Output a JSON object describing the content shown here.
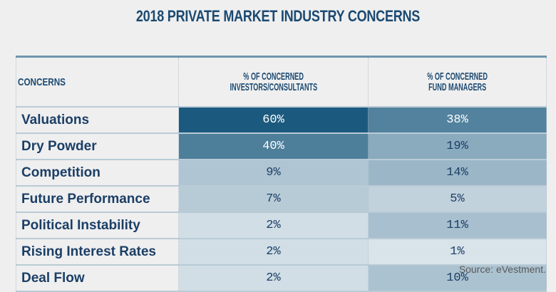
{
  "chart_data": {
    "type": "table",
    "title": "2018 PRIVATE MARKET INDUSTRY CONCERNS",
    "columns": [
      "CONCERNS",
      "% OF CONCERNED INVESTORS/CONSULTANTS",
      "% OF CONCERNED FUND MANAGERS"
    ],
    "header_lines": {
      "col2": [
        "% OF CONCERNED",
        "INVESTORS/CONSULTANTS"
      ],
      "col3": [
        "% OF CONCERNED",
        "FUND MANAGERS"
      ]
    },
    "rows": [
      {
        "concern": "Valuations",
        "investors": "60%",
        "managers": "38%",
        "investors_value": 60,
        "managers_value": 38
      },
      {
        "concern": "Dry Powder",
        "investors": "40%",
        "managers": "19%",
        "investors_value": 40,
        "managers_value": 19
      },
      {
        "concern": "Competition",
        "investors": "9%",
        "managers": "14%",
        "investors_value": 9,
        "managers_value": 14
      },
      {
        "concern": "Future Performance",
        "investors": "7%",
        "managers": "5%",
        "investors_value": 7,
        "managers_value": 5
      },
      {
        "concern": "Political Instability",
        "investors": "2%",
        "managers": "11%",
        "investors_value": 2,
        "managers_value": 11
      },
      {
        "concern": "Rising Interest Rates",
        "investors": "2%",
        "managers": "1%",
        "investors_value": 2,
        "managers_value": 1
      },
      {
        "concern": "Deal Flow",
        "investors": "2%",
        "managers": "10%",
        "investors_value": 2,
        "managers_value": 10
      }
    ],
    "source": "Source: eVestment."
  },
  "colors": {
    "title": "#1b4a72",
    "heat_max": "#1b5a7e",
    "heat_min": "#e4ebf1"
  }
}
